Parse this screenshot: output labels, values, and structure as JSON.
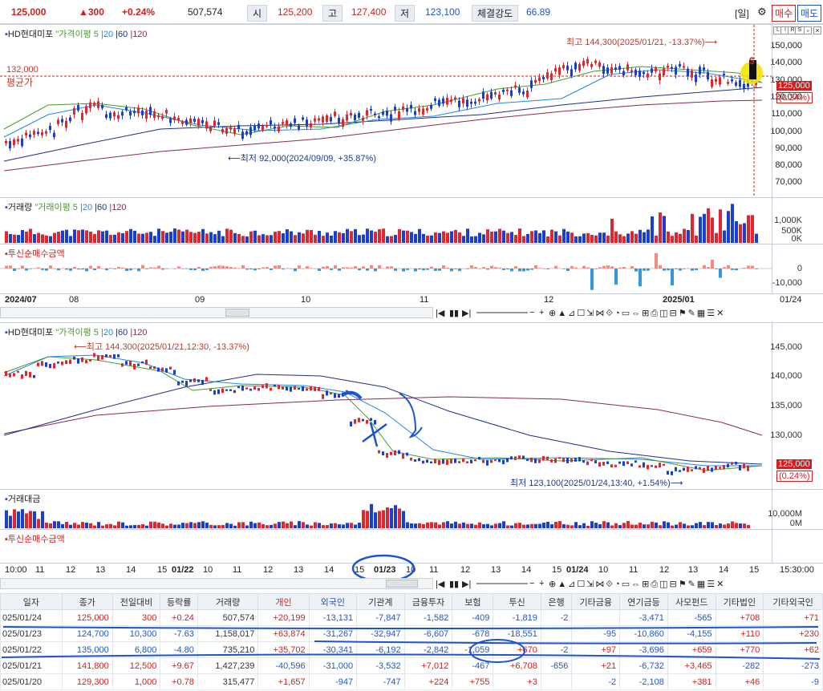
{
  "topbar": {
    "price": "125,000",
    "change": "▲300",
    "change_pct": "+0.24%",
    "volume": "507,574",
    "open_label": "시",
    "open": "125,200",
    "high_label": "고",
    "high": "127,400",
    "low_label": "저",
    "low": "123,100",
    "strength_label": "체결강도",
    "strength": "66.89",
    "period": "[일]",
    "buy": "매수",
    "sell": "매도"
  },
  "daily_chart": {
    "title": "HD현대미포",
    "ma_label": "가격이평",
    "ma5": "5",
    "ma20": "20",
    "ma60": "60",
    "ma120": "120",
    "high_note": "최고 144,300(2025/01/21, -13.37%)⟶",
    "low_note": "⟵최저 92,000(2024/09/09, +35.87%)",
    "avg_price": "132,000",
    "avg_label": "평균가",
    "current_price": "125,000",
    "current_pct": "(0.24%)",
    "y_ticks": [
      "150,000",
      "140,000",
      "130,000",
      "120,000",
      "110,000",
      "100,000",
      "90,000",
      "80,000",
      "70,000"
    ],
    "badge": "$"
  },
  "volume_panel": {
    "title": "거래량",
    "ma_label": "거래이평",
    "ma5": "5",
    "ma20": "20",
    "ma60": "60",
    "ma120": "120",
    "y_ticks": [
      "1,000K",
      "500K",
      "0K"
    ]
  },
  "inv_panel_daily": {
    "title": "투신순매수금액",
    "y_ticks": [
      "0",
      "-10,000"
    ]
  },
  "daily_xaxis": [
    "2024/07",
    "08",
    "09",
    "10",
    "11",
    "12",
    "2025/01",
    "01/24"
  ],
  "minute_chart": {
    "title": "HD현대미포",
    "ma_label": "가격이평",
    "ma5": "5",
    "ma20": "20",
    "ma60": "60",
    "ma120": "120",
    "high_note": "⟵최고 144,300(2025/01/21,12:30, -13.37%)",
    "low_note": "최저 123,100(2025/01/24,13:40, +1.54%)⟶",
    "current_price": "125,000",
    "current_pct": "(0.24%)",
    "y_ticks": [
      "145,000",
      "140,000",
      "135,000",
      "130,000"
    ]
  },
  "turnover_panel": {
    "title": "거래대금",
    "y_ticks": [
      "10,000M",
      "0M"
    ]
  },
  "inv_panel_minute": {
    "title": "투신순매수금액"
  },
  "minute_xaxis": [
    "10:00",
    "11",
    "12",
    "13",
    "14",
    "15",
    "01/22",
    "10",
    "11",
    "12",
    "13",
    "14",
    "15",
    "01/23",
    "10",
    "11",
    "12",
    "13",
    "14",
    "15",
    "01/24",
    "10",
    "11",
    "12",
    "13",
    "14",
    "15"
  ],
  "minute_time": "15:30:00",
  "panel_ctrl": [
    "L",
    "I",
    "R",
    "S"
  ],
  "table": {
    "headers": [
      "일자",
      "종가",
      "전일대비",
      "등락률",
      "거래량",
      "개인",
      "외국인",
      "기관계",
      "금융투자",
      "보험",
      "투신",
      "은행",
      "기타금융",
      "연기금등",
      "사모펀드",
      "기타법인",
      "기타외국인"
    ],
    "rows": [
      [
        "025/01/24",
        "125,000",
        "300",
        "+0.24",
        "507,574",
        "+20,199",
        "-13,131",
        "-7,847",
        "-1,582",
        "-409",
        "-1,819",
        "-2",
        "",
        "-3,471",
        "-565",
        "+708",
        "+71"
      ],
      [
        "025/01/23",
        "124,700",
        "10,300",
        "-7.63",
        "1,158,017",
        "+63,874",
        "-31,267",
        "-32,947",
        "-6,607",
        "-678",
        "-18,551",
        "",
        "-95",
        "-10,860",
        "-4,155",
        "+110",
        "+230"
      ],
      [
        "025/01/22",
        "135,000",
        "6,800",
        "-4.80",
        "735,210",
        "+35,702",
        "-30,341",
        "-6,192",
        "-2,842",
        "-1,059",
        "+670",
        "-2",
        "+97",
        "-3,696",
        "+659",
        "+770",
        "+62"
      ],
      [
        "025/01/21",
        "141,800",
        "12,500",
        "+9.67",
        "1,427,239",
        "-40,596",
        "-31,000",
        "-3,532",
        "+7,012",
        "-467",
        "+6,708",
        "-656",
        "+21",
        "-6,732",
        "+3,465",
        "-282",
        "-273"
      ],
      [
        "025/01/20",
        "129,300",
        "1,000",
        "+0.78",
        "315,477",
        "+1,657",
        "-947",
        "-747",
        "+224",
        "+755",
        "+3",
        "",
        "-2",
        "-2,108",
        "+381",
        "+46",
        "-9"
      ]
    ],
    "row_dirs": [
      "up",
      "dn",
      "dn",
      "up",
      "up"
    ]
  }
}
